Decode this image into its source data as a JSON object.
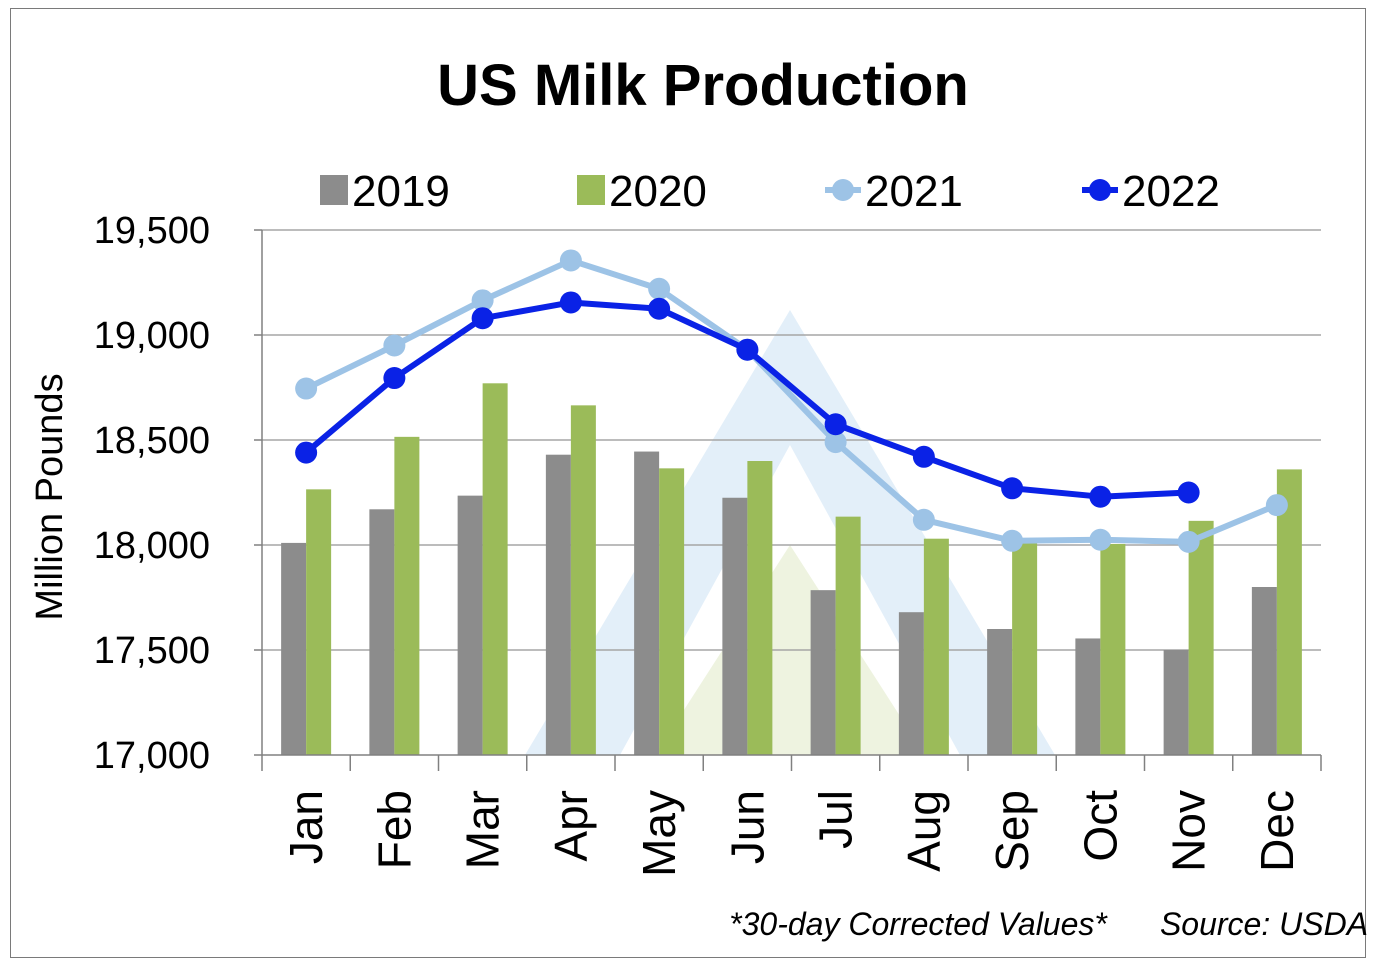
{
  "chart_data": {
    "type": "bar",
    "title": "US Milk Production",
    "ylabel": "Million Pounds",
    "xlabel": "",
    "ylim": [
      17000,
      19500
    ],
    "yticks": [
      17000,
      17500,
      18000,
      18500,
      19000,
      19500
    ],
    "ytick_labels": [
      "17,000",
      "17,500",
      "18,000",
      "18,500",
      "19,000",
      "19,500"
    ],
    "grid": true,
    "legend_position": "top",
    "categories": [
      "Jan",
      "Feb",
      "Mar",
      "Apr",
      "May",
      "Jun",
      "Jul",
      "Aug",
      "Sep",
      "Oct",
      "Nov",
      "Dec"
    ],
    "series": [
      {
        "name": "2019",
        "kind": "bar",
        "color": "#8c8c8c",
        "values": [
          18010,
          18170,
          18235,
          18430,
          18445,
          18225,
          17785,
          17680,
          17600,
          17555,
          17500,
          17800
        ]
      },
      {
        "name": "2020",
        "kind": "bar",
        "color": "#9bbb59",
        "values": [
          18265,
          18515,
          18770,
          18665,
          18365,
          18400,
          18135,
          18030,
          18010,
          18005,
          18115,
          18360
        ]
      },
      {
        "name": "2021",
        "kind": "line",
        "color": "#9dc3e6",
        "values": [
          18745,
          18950,
          19165,
          19355,
          19220,
          18930,
          18490,
          18120,
          18020,
          18025,
          18015,
          18190
        ]
      },
      {
        "name": "2022",
        "kind": "line",
        "color": "#0a22e6",
        "values": [
          18440,
          18795,
          19080,
          19155,
          19125,
          18930,
          18575,
          18420,
          18270,
          18230,
          18250,
          null
        ]
      }
    ],
    "annotations": [
      "*30-day Corrected Values*",
      "Source: USDA"
    ]
  }
}
